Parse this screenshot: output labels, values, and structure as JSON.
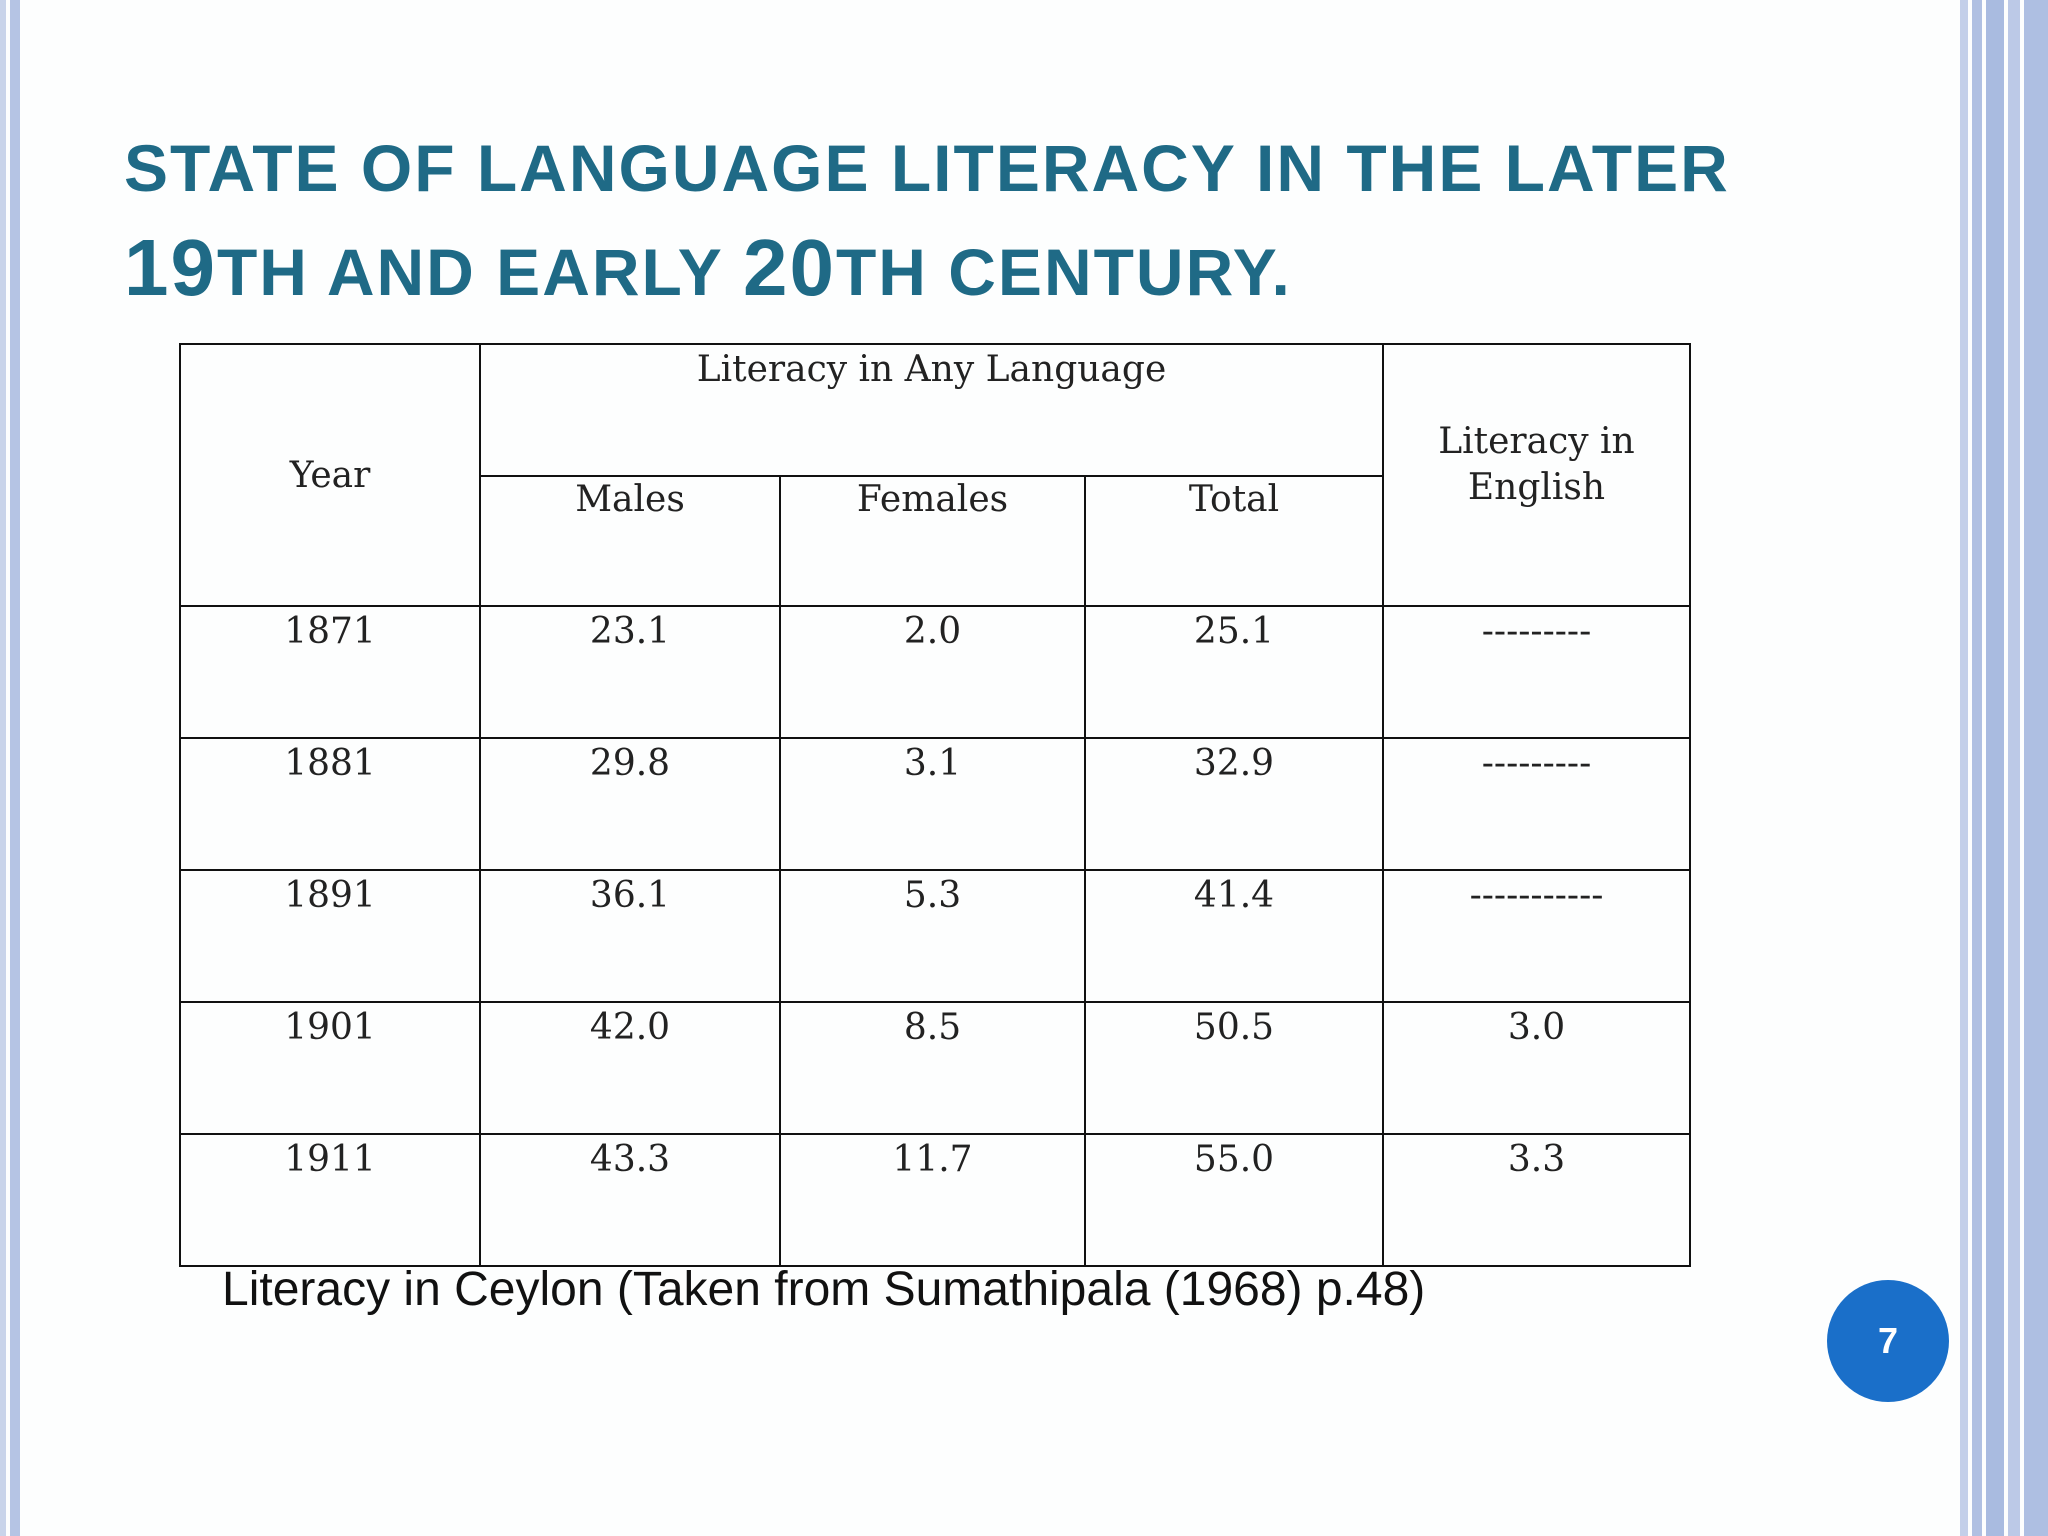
{
  "slide": {
    "title_part1": "STATE OF LANGUAGE LITERACY IN THE LATER",
    "title_num1": "19",
    "title_part2": "TH AND EARLY ",
    "title_num2": "20",
    "title_part3": "TH CENTURY.",
    "caption": "Literacy in Ceylon (Taken from Sumathipala (1968) p.48)",
    "page_number": "7"
  },
  "table": {
    "header": {
      "year": "Year",
      "group": "Literacy in Any Language",
      "males": "Males",
      "females": "Females",
      "total": "Total",
      "english_line1": "Literacy in",
      "english_line2": "English"
    },
    "rows": [
      {
        "year": "1871",
        "males": "23.1",
        "females": "2.0",
        "total": "25.1",
        "english": "---------"
      },
      {
        "year": "1881",
        "males": "29.8",
        "females": "3.1",
        "total": "32.9",
        "english": "---------"
      },
      {
        "year": "1891",
        "males": "36.1",
        "females": "5.3",
        "total": "41.4",
        "english": "-----------"
      },
      {
        "year": "1901",
        "males": "42.0",
        "females": "8.5",
        "total": "50.5",
        "english": "3.0"
      },
      {
        "year": "1911",
        "males": "43.3",
        "females": "11.7",
        "total": "55.0",
        "english": "3.3"
      }
    ]
  },
  "colors": {
    "title": "#1f6a86",
    "badge": "#1a6fc9",
    "stripes": "#b0c0e2"
  }
}
